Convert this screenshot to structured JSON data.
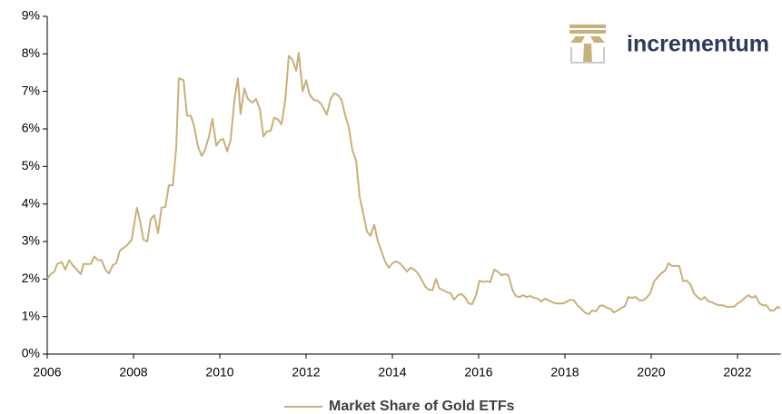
{
  "chart_data": {
    "type": "line",
    "logo": "incrementum",
    "xlim": [
      2006,
      2023
    ],
    "xticks": [
      2006,
      2008,
      2010,
      2012,
      2014,
      2016,
      2018,
      2020,
      2022
    ],
    "ylim": [
      0,
      9
    ],
    "yticks": [
      {
        "value": 0,
        "label": "0%"
      },
      {
        "value": 1,
        "label": "1%"
      },
      {
        "value": 2,
        "label": "2%"
      },
      {
        "value": 3,
        "label": "3%"
      },
      {
        "value": 4,
        "label": "4%"
      },
      {
        "value": 5,
        "label": "5%"
      },
      {
        "value": 6,
        "label": "6%"
      },
      {
        "value": 7,
        "label": "7%"
      },
      {
        "value": 8,
        "label": "8%"
      },
      {
        "value": 9,
        "label": "9%"
      }
    ],
    "grid": false,
    "legend": "bottom",
    "x": [
      2006.0,
      2006.08,
      2006.17,
      2006.23,
      2006.34,
      2006.42,
      2006.51,
      2006.59,
      2006.67,
      2006.78,
      2006.84,
      2007.01,
      2007.09,
      2007.18,
      2007.26,
      2007.35,
      2007.43,
      2007.52,
      2007.6,
      2007.68,
      2007.85,
      2007.96,
      2008.02,
      2008.08,
      2008.15,
      2008.23,
      2008.32,
      2008.4,
      2008.48,
      2008.57,
      2008.65,
      2008.74,
      2008.82,
      2008.91,
      2008.99,
      2009.05,
      2009.16,
      2009.24,
      2009.33,
      2009.41,
      2009.49,
      2009.58,
      2009.66,
      2009.75,
      2009.83,
      2009.92,
      2010.0,
      2010.08,
      2010.17,
      2010.25,
      2010.34,
      2010.42,
      2010.48,
      2010.57,
      2010.65,
      2010.76,
      2010.84,
      2010.93,
      2011.01,
      2011.09,
      2011.18,
      2011.26,
      2011.35,
      2011.43,
      2011.52,
      2011.6,
      2011.68,
      2011.77,
      2011.83,
      2011.92,
      2012.0,
      2012.08,
      2012.17,
      2012.27,
      2012.36,
      2012.48,
      2012.57,
      2012.65,
      2012.74,
      2012.82,
      2012.91,
      2012.99,
      2013.07,
      2013.16,
      2013.24,
      2013.33,
      2013.41,
      2013.49,
      2013.58,
      2013.66,
      2013.75,
      2013.83,
      2013.92,
      2014.0,
      2014.08,
      2014.17,
      2014.25,
      2014.34,
      2014.42,
      2014.51,
      2014.59,
      2014.67,
      2014.76,
      2014.84,
      2014.93,
      2015.01,
      2015.09,
      2015.18,
      2015.26,
      2015.35,
      2015.43,
      2015.52,
      2015.6,
      2015.68,
      2015.77,
      2015.85,
      2015.94,
      2016.02,
      2016.11,
      2016.19,
      2016.27,
      2016.36,
      2016.44,
      2016.53,
      2016.61,
      2016.69,
      2016.78,
      2016.86,
      2016.95,
      2017.03,
      2017.12,
      2017.2,
      2017.28,
      2017.37,
      2017.45,
      2017.54,
      2017.62,
      2017.71,
      2017.79,
      2017.96,
      2018.13,
      2018.21,
      2018.29,
      2018.38,
      2018.46,
      2018.55,
      2018.63,
      2018.72,
      2018.8,
      2018.88,
      2018.97,
      2019.05,
      2019.14,
      2019.22,
      2019.31,
      2019.39,
      2019.47,
      2019.56,
      2019.64,
      2019.73,
      2019.81,
      2019.89,
      2019.98,
      2020.06,
      2020.15,
      2020.23,
      2020.32,
      2020.4,
      2020.48,
      2020.57,
      2020.65,
      2020.74,
      2020.82,
      2020.91,
      2020.99,
      2021.07,
      2021.16,
      2021.24,
      2021.33,
      2021.41,
      2021.49,
      2021.58,
      2021.66,
      2021.75,
      2021.83,
      2021.92,
      2022.0,
      2022.08,
      2022.17,
      2022.25,
      2022.34,
      2022.42,
      2022.51,
      2022.59,
      2022.67,
      2022.76,
      2022.84,
      2022.93,
      2022.99
    ],
    "series": [
      {
        "name": "Market Share of Gold ETFs",
        "color": "#c8b07a",
        "values": [
          2.0,
          2.13,
          2.2,
          2.4,
          2.45,
          2.25,
          2.5,
          2.37,
          2.27,
          2.13,
          2.4,
          2.4,
          2.6,
          2.5,
          2.5,
          2.25,
          2.15,
          2.37,
          2.42,
          2.75,
          2.9,
          3.05,
          3.5,
          3.9,
          3.55,
          3.05,
          3.0,
          3.6,
          3.7,
          3.22,
          3.9,
          3.92,
          4.5,
          4.5,
          5.5,
          7.35,
          7.3,
          6.35,
          6.35,
          6.05,
          5.55,
          5.28,
          5.45,
          5.8,
          6.27,
          5.55,
          5.7,
          5.73,
          5.4,
          5.7,
          6.78,
          7.35,
          6.4,
          7.08,
          6.8,
          6.7,
          6.8,
          6.53,
          5.8,
          5.93,
          5.95,
          6.3,
          6.25,
          6.12,
          6.8,
          7.95,
          7.85,
          7.55,
          8.03,
          7.0,
          7.3,
          6.92,
          6.78,
          6.75,
          6.65,
          6.38,
          6.8,
          6.95,
          6.9,
          6.78,
          6.35,
          6.05,
          5.45,
          5.15,
          4.2,
          3.72,
          3.27,
          3.15,
          3.45,
          3.02,
          2.73,
          2.47,
          2.3,
          2.42,
          2.47,
          2.42,
          2.32,
          2.2,
          2.3,
          2.25,
          2.15,
          2.0,
          1.8,
          1.72,
          1.7,
          2.0,
          1.75,
          1.7,
          1.65,
          1.62,
          1.45,
          1.57,
          1.6,
          1.52,
          1.35,
          1.33,
          1.57,
          1.96,
          1.92,
          1.94,
          1.92,
          2.25,
          2.2,
          2.1,
          2.13,
          2.1,
          1.72,
          1.55,
          1.52,
          1.57,
          1.52,
          1.55,
          1.5,
          1.48,
          1.4,
          1.48,
          1.43,
          1.38,
          1.35,
          1.35,
          1.45,
          1.43,
          1.3,
          1.21,
          1.11,
          1.06,
          1.16,
          1.14,
          1.28,
          1.3,
          1.23,
          1.21,
          1.11,
          1.16,
          1.23,
          1.28,
          1.52,
          1.5,
          1.52,
          1.43,
          1.43,
          1.5,
          1.62,
          1.92,
          2.05,
          2.15,
          2.22,
          2.42,
          2.35,
          2.35,
          2.35,
          1.94,
          1.96,
          1.86,
          1.62,
          1.52,
          1.45,
          1.52,
          1.4,
          1.38,
          1.33,
          1.3,
          1.3,
          1.26,
          1.26,
          1.26,
          1.35,
          1.4,
          1.5,
          1.57,
          1.5,
          1.55,
          1.35,
          1.3,
          1.3,
          1.16,
          1.16,
          1.26,
          1.21
        ]
      }
    ]
  }
}
